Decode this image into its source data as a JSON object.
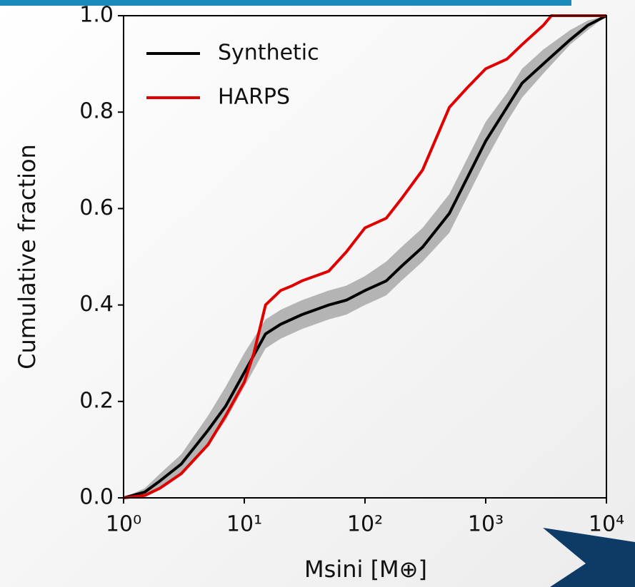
{
  "chart_data": {
    "type": "line",
    "xlabel": "Msini [M⊕]",
    "ylabel": "Cumulative fraction",
    "xscale": "log",
    "legend": "upper left",
    "xlim": [
      1,
      10000
    ],
    "ylim": [
      0,
      1
    ],
    "xticks": [
      {
        "value": 1,
        "label": "10⁰"
      },
      {
        "value": 10,
        "label": "10¹"
      },
      {
        "value": 100,
        "label": "10²"
      },
      {
        "value": 1000,
        "label": "10³"
      },
      {
        "value": 10000,
        "label": "10⁴"
      }
    ],
    "yticks": [
      {
        "value": 0,
        "label": "0.0"
      },
      {
        "value": 0.2,
        "label": "0.2"
      },
      {
        "value": 0.4,
        "label": "0.4"
      },
      {
        "value": 0.6,
        "label": "0.6"
      },
      {
        "value": 0.8,
        "label": "0.8"
      },
      {
        "value": 1,
        "label": "1.0"
      }
    ],
    "band": {
      "color": "#999999",
      "x": [
        1,
        1.5,
        2,
        3,
        5,
        7,
        10,
        15,
        20,
        30,
        50,
        70,
        100,
        150,
        200,
        300,
        500,
        1000,
        1500,
        2000,
        3000,
        5000,
        7000,
        10000
      ],
      "lower": [
        0,
        0.005,
        0.02,
        0.05,
        0.11,
        0.16,
        0.23,
        0.31,
        0.33,
        0.35,
        0.37,
        0.38,
        0.4,
        0.42,
        0.45,
        0.49,
        0.55,
        0.7,
        0.78,
        0.83,
        0.88,
        0.94,
        0.97,
        1
      ],
      "upper": [
        0,
        0.02,
        0.05,
        0.09,
        0.17,
        0.23,
        0.3,
        0.37,
        0.39,
        0.41,
        0.43,
        0.44,
        0.46,
        0.49,
        0.52,
        0.56,
        0.63,
        0.78,
        0.84,
        0.89,
        0.93,
        0.97,
        0.99,
        1
      ]
    },
    "series": [
      {
        "name": "Synthetic",
        "color": "#000000",
        "x": [
          1,
          1.5,
          2,
          3,
          5,
          7,
          10,
          15,
          20,
          30,
          50,
          70,
          100,
          150,
          200,
          300,
          500,
          1000,
          1500,
          2000,
          3000,
          5000,
          7000,
          10000
        ],
        "values": [
          0,
          0.012,
          0.035,
          0.07,
          0.14,
          0.19,
          0.26,
          0.34,
          0.36,
          0.38,
          0.4,
          0.41,
          0.43,
          0.45,
          0.48,
          0.52,
          0.59,
          0.74,
          0.81,
          0.86,
          0.9,
          0.95,
          0.98,
          1
        ]
      },
      {
        "name": "HARPS",
        "color": "#e00000",
        "x": [
          1,
          1.5,
          2,
          3,
          5,
          7,
          10,
          12,
          15,
          20,
          25,
          30,
          50,
          70,
          100,
          150,
          200,
          300,
          500,
          700,
          1000,
          1500,
          2000,
          3000,
          3500,
          10000
        ],
        "values": [
          0,
          0.005,
          0.02,
          0.05,
          0.11,
          0.17,
          0.24,
          0.3,
          0.4,
          0.43,
          0.44,
          0.45,
          0.47,
          0.51,
          0.56,
          0.58,
          0.62,
          0.68,
          0.81,
          0.85,
          0.89,
          0.91,
          0.94,
          0.98,
          1,
          1
        ]
      }
    ]
  }
}
